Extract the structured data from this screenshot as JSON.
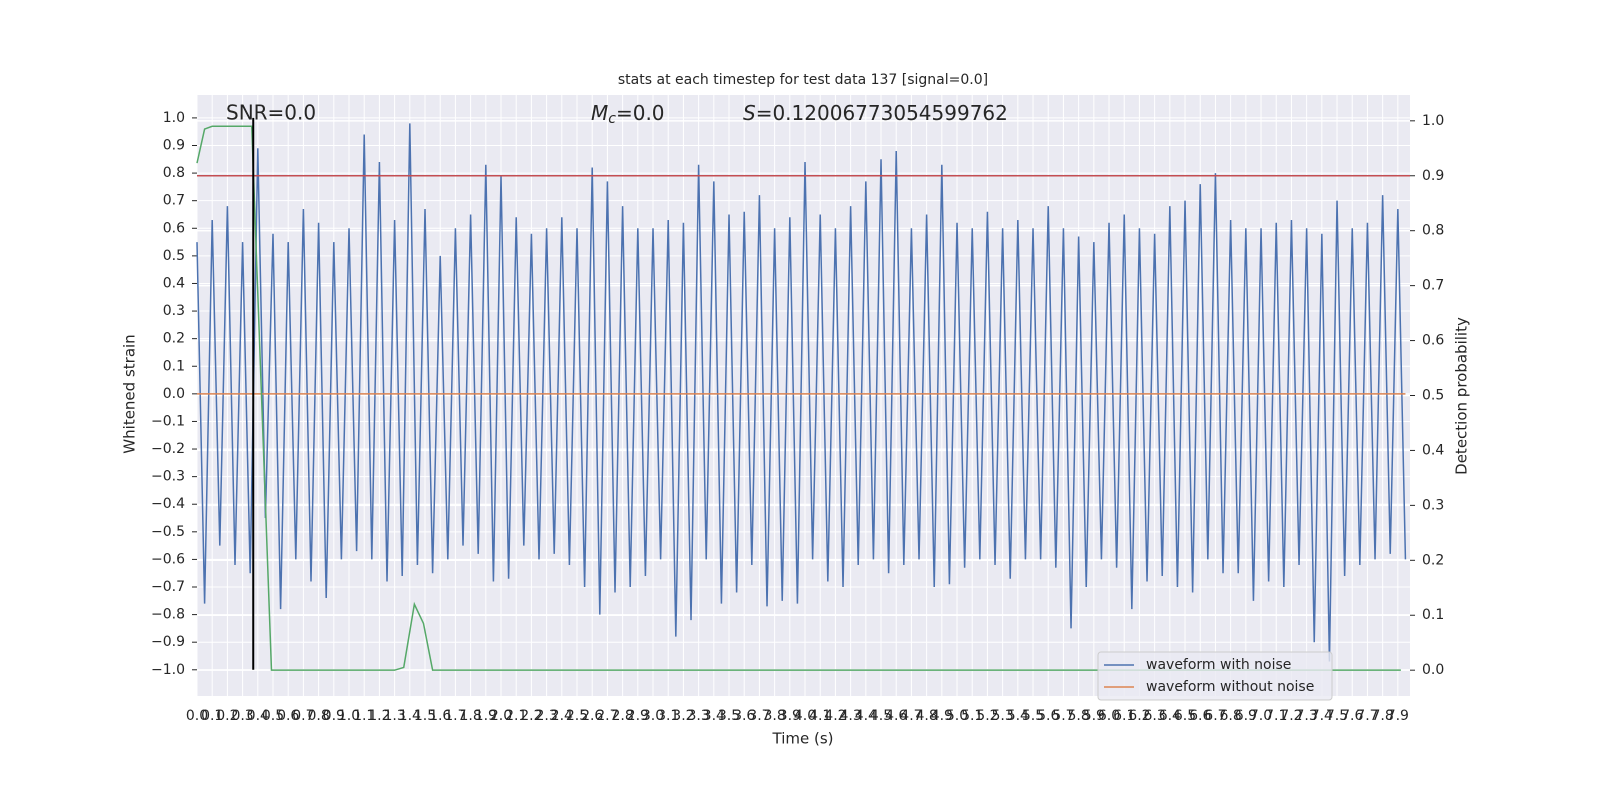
{
  "chart_data": {
    "type": "line",
    "title": "stats at each timestep for test data 137 [signal=0.0]",
    "xlabel": "Time (s)",
    "ylabel": "Whitened strain",
    "y2label": "Detection probability",
    "annotations": {
      "snr": "SNR=0.0",
      "mc": {
        "base": "M",
        "sub": "c",
        "rest": "=0.0"
      },
      "s": {
        "base": "S",
        "rest": "=0.12006773054599762"
      }
    },
    "xlim": [
      0,
      7.98
    ],
    "ylim": [
      -1.095,
      1.083
    ],
    "y2lim": [
      -0.047,
      1.047
    ],
    "grid": true,
    "legend": "lower right",
    "background": "#eaeaf2",
    "xticks": [
      {
        "value": 0,
        "label": "0.0"
      },
      0.1,
      0.2,
      0.3,
      0.4,
      0.5,
      0.6,
      0.7,
      0.8,
      0.9,
      {
        "value": 1,
        "label": "1.0"
      },
      1.1,
      1.2,
      1.3,
      1.4,
      1.5,
      1.6,
      1.7,
      1.8,
      1.9,
      {
        "value": 2,
        "label": "2.0"
      },
      2.1,
      2.2,
      2.3,
      2.4,
      2.5,
      2.6,
      2.7,
      2.8,
      2.9,
      {
        "value": 3,
        "label": "3.0"
      },
      3.1,
      3.2,
      3.3,
      3.4,
      3.5,
      3.6,
      3.7,
      3.8,
      3.9,
      {
        "value": 4,
        "label": "4.0"
      },
      4.1,
      4.2,
      4.3,
      4.4,
      4.5,
      4.6,
      4.7,
      4.8,
      4.9,
      {
        "value": 5,
        "label": "5.0"
      },
      5.1,
      5.2,
      5.3,
      5.4,
      5.5,
      5.6,
      5.7,
      5.8,
      5.9,
      {
        "value": 6,
        "label": "6.0"
      },
      6.1,
      6.2,
      6.3,
      6.4,
      6.5,
      6.6,
      6.7,
      6.8,
      6.9,
      {
        "value": 7,
        "label": "7.0"
      },
      7.1,
      7.2,
      7.3,
      7.4,
      7.5,
      7.6,
      7.7,
      7.8,
      7.9
    ],
    "yticks": [
      {
        "value": -1,
        "label": "−1.0"
      },
      {
        "value": -0.9,
        "label": "−0.9"
      },
      {
        "value": -0.8,
        "label": "−0.8"
      },
      {
        "value": -0.7,
        "label": "−0.7"
      },
      {
        "value": -0.6,
        "label": "−0.6"
      },
      {
        "value": -0.5,
        "label": "−0.5"
      },
      {
        "value": -0.4,
        "label": "−0.4"
      },
      {
        "value": -0.3,
        "label": "−0.3"
      },
      {
        "value": -0.2,
        "label": "−0.2"
      },
      {
        "value": -0.1,
        "label": "−0.1"
      },
      {
        "value": 0,
        "label": "0.0"
      },
      0.1,
      0.2,
      0.3,
      0.4,
      0.5,
      0.6,
      0.7,
      0.8,
      0.9,
      {
        "value": 1,
        "label": "1.0"
      }
    ],
    "y2ticks": [
      {
        "value": 0,
        "label": "0.0"
      },
      0.1,
      0.2,
      0.3,
      0.4,
      0.5,
      0.6,
      0.7,
      0.8,
      0.9,
      {
        "value": 1,
        "label": "1.0"
      }
    ],
    "series": [
      {
        "name": "waveform with noise",
        "color": "#4c72b0",
        "x": [
          0,
          0.05,
          0.1,
          0.15,
          0.2,
          0.25,
          0.3,
          0.35,
          0.4,
          0.45,
          0.5,
          0.55,
          0.6,
          0.65,
          0.7,
          0.75,
          0.8,
          0.85,
          0.9,
          0.95,
          1,
          1.05,
          1.1,
          1.15,
          1.2,
          1.25,
          1.3,
          1.35,
          1.4,
          1.45,
          1.5,
          1.55,
          1.6,
          1.65,
          1.7,
          1.75,
          1.8,
          1.85,
          1.9,
          1.95,
          2,
          2.05,
          2.1,
          2.15,
          2.2,
          2.25,
          2.3,
          2.35,
          2.4,
          2.45,
          2.5,
          2.55,
          2.6,
          2.65,
          2.7,
          2.75,
          2.8,
          2.85,
          2.9,
          2.95,
          3,
          3.05,
          3.1,
          3.15,
          3.2,
          3.25,
          3.3,
          3.35,
          3.4,
          3.45,
          3.5,
          3.55,
          3.6,
          3.65,
          3.7,
          3.75,
          3.8,
          3.85,
          3.9,
          3.95,
          4,
          4.05,
          4.1,
          4.15,
          4.2,
          4.25,
          4.3,
          4.35,
          4.4,
          4.45,
          4.5,
          4.55,
          4.6,
          4.65,
          4.7,
          4.75,
          4.8,
          4.85,
          4.9,
          4.95,
          5,
          5.05,
          5.1,
          5.15,
          5.2,
          5.25,
          5.3,
          5.35,
          5.4,
          5.45,
          5.5,
          5.55,
          5.6,
          5.65,
          5.7,
          5.75,
          5.8,
          5.85,
          5.9,
          5.95,
          6,
          6.05,
          6.1,
          6.15,
          6.2,
          6.25,
          6.3,
          6.35,
          6.4,
          6.45,
          6.5,
          6.55,
          6.6,
          6.65,
          6.7,
          6.75,
          6.8,
          6.85,
          6.9,
          6.95,
          7,
          7.05,
          7.1,
          7.15,
          7.2,
          7.25,
          7.3,
          7.35,
          7.4,
          7.45,
          7.5,
          7.55,
          7.6,
          7.65,
          7.7,
          7.75,
          7.8,
          7.85,
          7.9,
          7.95
        ],
        "values": [
          0.55,
          -0.76,
          0.63,
          -0.55,
          0.68,
          -0.62,
          0.55,
          -0.65,
          0.89,
          -0.45,
          0.58,
          -0.78,
          0.55,
          -0.6,
          0.67,
          -0.68,
          0.62,
          -0.74,
          0.55,
          -0.6,
          0.6,
          -0.57,
          0.94,
          -0.6,
          0.84,
          -0.68,
          0.63,
          -0.66,
          0.98,
          -0.62,
          0.67,
          -0.65,
          0.5,
          -0.6,
          0.6,
          -0.55,
          0.65,
          -0.58,
          0.83,
          -0.68,
          0.79,
          -0.67,
          0.64,
          -0.55,
          0.58,
          -0.6,
          0.6,
          -0.58,
          0.64,
          -0.62,
          0.6,
          -0.7,
          0.82,
          -0.8,
          0.77,
          -0.72,
          0.68,
          -0.7,
          0.6,
          -0.66,
          0.6,
          -0.6,
          0.63,
          -0.88,
          0.62,
          -0.82,
          0.83,
          -0.6,
          0.77,
          -0.76,
          0.65,
          -0.72,
          0.66,
          -0.62,
          0.72,
          -0.77,
          0.6,
          -0.75,
          0.64,
          -0.76,
          0.84,
          -0.6,
          0.65,
          -0.68,
          0.6,
          -0.7,
          0.68,
          -0.62,
          0.77,
          -0.6,
          0.85,
          -0.65,
          0.88,
          -0.62,
          0.6,
          -0.6,
          0.65,
          -0.7,
          0.83,
          -0.69,
          0.62,
          -0.63,
          0.6,
          -0.6,
          0.66,
          -0.62,
          0.6,
          -0.67,
          0.63,
          -0.6,
          0.6,
          -0.6,
          0.68,
          -0.63,
          0.6,
          -0.85,
          0.57,
          -0.7,
          0.55,
          -0.6,
          0.62,
          -0.63,
          0.65,
          -0.78,
          0.6,
          -0.68,
          0.58,
          -0.66,
          0.68,
          -0.7,
          0.7,
          -0.72,
          0.76,
          -0.6,
          0.8,
          -0.65,
          0.63,
          -0.65,
          0.6,
          -0.75,
          0.6,
          -0.68,
          0.62,
          -0.7,
          0.63,
          -0.62,
          0.6,
          -0.9,
          0.58,
          -0.97,
          0.7,
          -0.66,
          0.6,
          -0.62,
          0.62,
          -0.6,
          0.72,
          -0.58,
          0.67,
          -0.6
        ]
      },
      {
        "name": "waveform without noise",
        "color": "#dd8452",
        "x": [
          0,
          7.95
        ],
        "values": [
          0,
          0
        ]
      },
      {
        "color": "#55a868",
        "axis": "y2",
        "x": [
          0,
          0.05,
          0.1,
          0.36,
          0.49,
          1.3,
          1.36,
          1.43,
          1.49,
          1.55,
          7.92
        ],
        "values": [
          0.923,
          0.985,
          0.99,
          0.99,
          0,
          0,
          0.005,
          0.12,
          0.085,
          0,
          0
        ]
      }
    ],
    "threshold": {
      "value": 0.9,
      "axis": "y2",
      "color": "#c44e52"
    },
    "signal_line": {
      "x": 0.37,
      "y": [
        -1,
        1
      ],
      "color": "#000000"
    }
  }
}
